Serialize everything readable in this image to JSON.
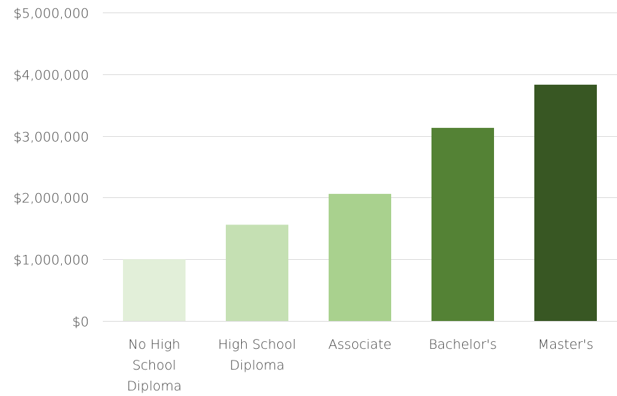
{
  "chart_data": {
    "type": "bar",
    "categories": [
      [
        "No High",
        "School",
        "Diploma"
      ],
      [
        "High School",
        "Diploma"
      ],
      [
        "Associate"
      ],
      [
        "Bachelor's"
      ],
      [
        "Master's"
      ]
    ],
    "values": [
      1000000,
      1560000,
      2060000,
      3130000,
      3830000
    ],
    "bar_colors": [
      "#e2efd9",
      "#c5e0b3",
      "#a9d18e",
      "#548235",
      "#385723"
    ],
    "ylim": [
      0,
      5000000
    ],
    "yticks": [
      0,
      1000000,
      2000000,
      3000000,
      4000000,
      5000000
    ],
    "ytick_labels": [
      "$0",
      "$1,000,000",
      "$2,000,000",
      "$3,000,000",
      "$4,000,000",
      "$5,000,000"
    ],
    "title": "",
    "xlabel": "",
    "ylabel": "",
    "grid": true,
    "legend": "none",
    "gridline_color": "#d9d9d9",
    "text_color": "#404040"
  }
}
